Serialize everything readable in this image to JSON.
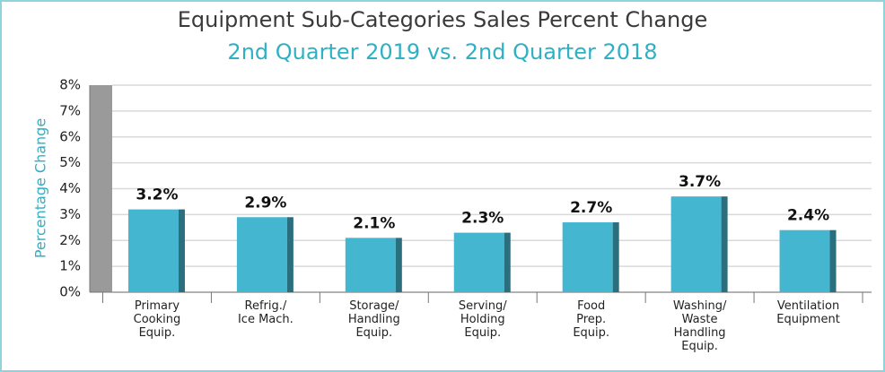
{
  "chart_data": {
    "type": "bar",
    "title": "Equipment Sub-Categories Sales Percent Change",
    "subtitle": "2nd Quarter 2019 vs. 2nd Quarter 2018",
    "y_axis_label": "Percentage Change",
    "categories": [
      "Primary\nCooking\nEquip.",
      "Refrig./\nIce Mach.",
      "Storage/\nHandling\nEquip.",
      "Serving/\nHolding\nEquip.",
      "Food\nPrep.\nEquip.",
      "Washing/\nWaste\nHandling\nEquip.",
      "Ventilation\nEquipment"
    ],
    "values": [
      3.2,
      2.9,
      2.1,
      2.3,
      2.7,
      3.7,
      2.4
    ],
    "value_labels": [
      "3.2%",
      "2.9%",
      "2.1%",
      "2.3%",
      "2.7%",
      "3.7%",
      "2.4%"
    ],
    "color": "#45b6d0",
    "ylim": [
      0,
      8
    ],
    "yticks": [
      {
        "value": 0,
        "label": "0%"
      },
      {
        "value": 1,
        "label": "1%"
      },
      {
        "value": 2,
        "label": "2%"
      },
      {
        "value": 3,
        "label": "3%"
      },
      {
        "value": 4,
        "label": "4%"
      },
      {
        "value": 5,
        "label": "5%"
      },
      {
        "value": 6,
        "label": "6%"
      },
      {
        "value": 7,
        "label": "7%"
      },
      {
        "value": 8,
        "label": "8%"
      }
    ],
    "grid": true
  }
}
